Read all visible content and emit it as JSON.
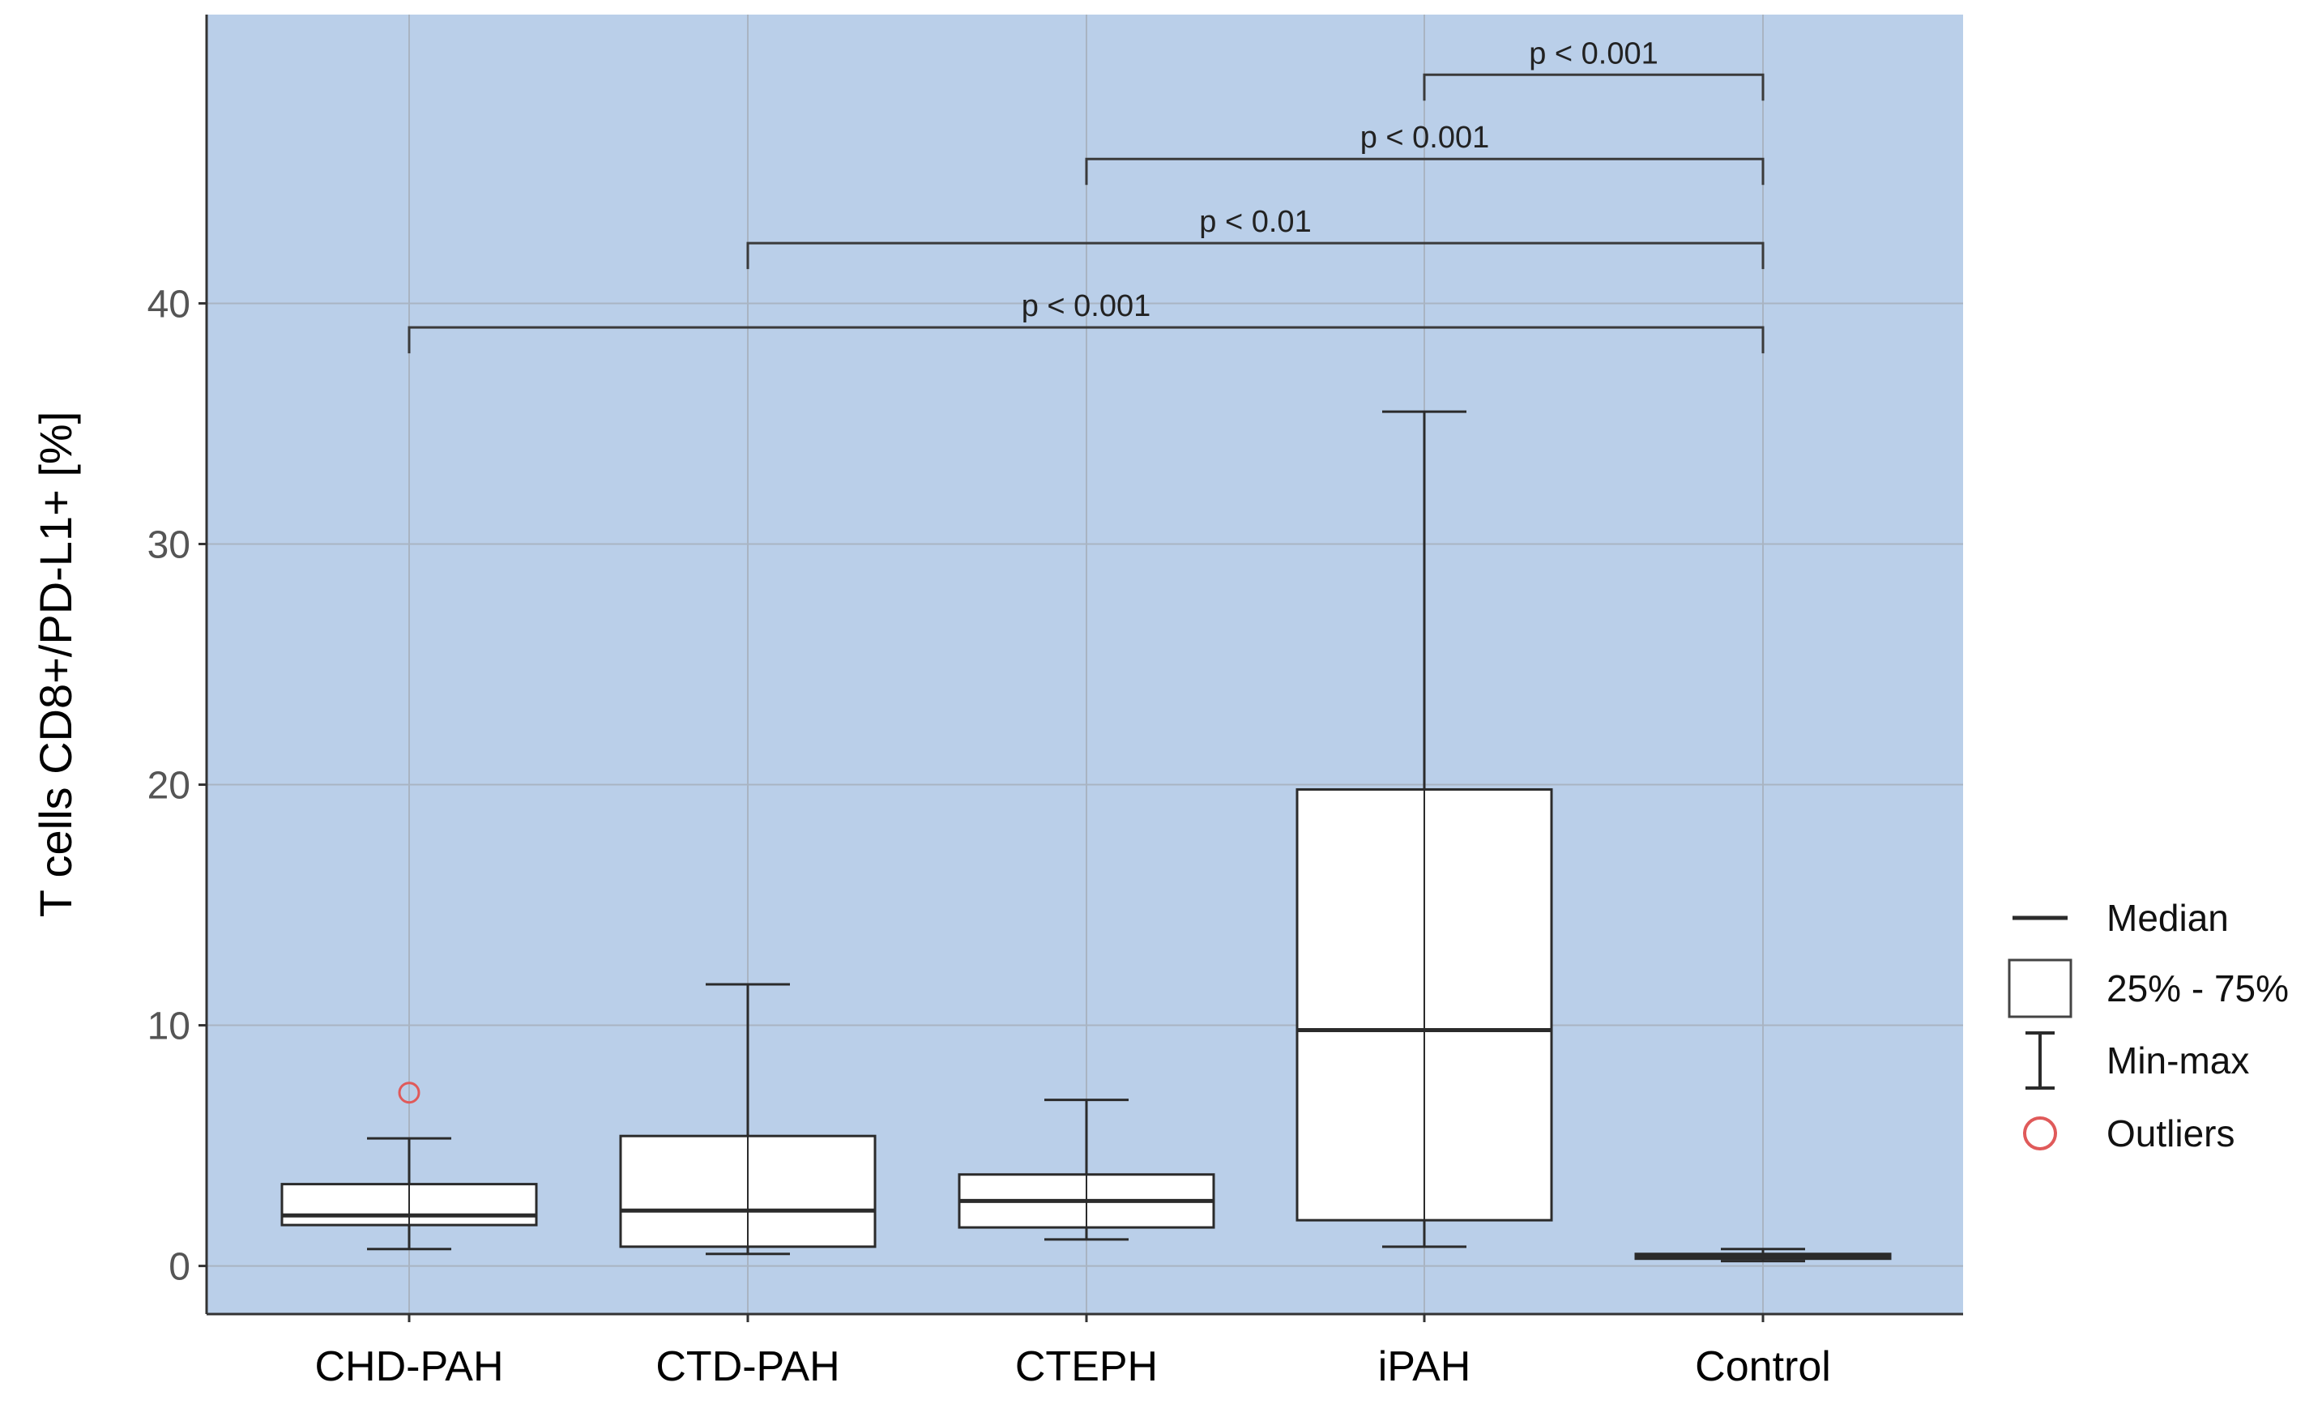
{
  "colors": {
    "panel_background": "#bacfe9",
    "grid": "#a9b4c2",
    "box_fill": "#ffffff",
    "box_stroke": "#2b2b2b",
    "bracket": "#3a3a3a",
    "outlier": "#e05a5a",
    "tick_text": "#555555",
    "category_text": "#000000"
  },
  "chart_data": {
    "type": "boxplot",
    "ylabel": "T cells CD8+/PD-L1+ [%]",
    "xlabel": "",
    "ylim": [
      -2,
      52
    ],
    "yticks": [
      0,
      10,
      20,
      30,
      40
    ],
    "ytick_labels": [
      "0",
      "10",
      "20",
      "30",
      "40"
    ],
    "grid": true,
    "categories": [
      "CHD-PAH",
      "CTD-PAH",
      "CTEPH",
      "iPAH",
      "Control"
    ],
    "boxes": [
      {
        "category": "CHD-PAH",
        "min": 0.7,
        "q1": 1.7,
        "median": 2.1,
        "q3": 3.4,
        "max": 5.3,
        "outliers": [
          7.2
        ]
      },
      {
        "category": "CTD-PAH",
        "min": 0.5,
        "q1": 0.8,
        "median": 2.3,
        "q3": 5.4,
        "max": 11.7,
        "outliers": []
      },
      {
        "category": "CTEPH",
        "min": 1.1,
        "q1": 1.6,
        "median": 2.7,
        "q3": 3.8,
        "max": 6.9,
        "outliers": []
      },
      {
        "category": "iPAH",
        "min": 0.8,
        "q1": 1.9,
        "median": 9.8,
        "q3": 19.8,
        "max": 35.5,
        "outliers": []
      },
      {
        "category": "Control",
        "min": 0.2,
        "q1": 0.3,
        "median": 0.4,
        "q3": 0.5,
        "max": 0.7,
        "outliers": []
      }
    ],
    "annotations": [
      {
        "from": "iPAH",
        "to": "Control",
        "y": 49.5,
        "label": "p < 0.001"
      },
      {
        "from": "CTEPH",
        "to": "Control",
        "y": 46.0,
        "label": "p < 0.001"
      },
      {
        "from": "CTD-PAH",
        "to": "Control",
        "y": 42.5,
        "label": "p < 0.01"
      },
      {
        "from": "CHD-PAH",
        "to": "Control",
        "y": 39.0,
        "label": "p < 0.001"
      }
    ],
    "legend": {
      "placement": "right",
      "items": [
        {
          "symbol": "median-line",
          "label": "Median"
        },
        {
          "symbol": "box",
          "label": "25% - 75%"
        },
        {
          "symbol": "whisker",
          "label": "Min-max"
        },
        {
          "symbol": "outlier-circle",
          "label": "Outliers"
        }
      ]
    }
  }
}
